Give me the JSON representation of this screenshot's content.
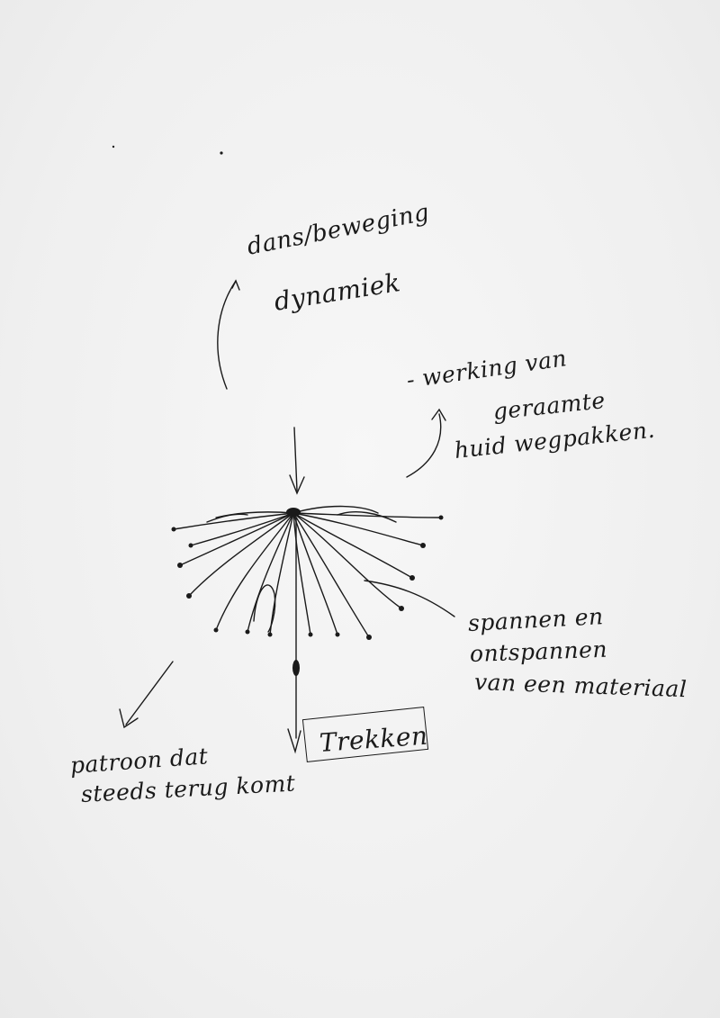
{
  "notes": {
    "dans": "dans/beweging",
    "dynamiek": "dynamiek",
    "werking_1": "- werking van",
    "werking_2": "geraamte",
    "werking_3": "huid wegpakken.",
    "spannen_1": "spannen en",
    "spannen_2": "ontspannen",
    "spannen_3": "van een materiaal",
    "patroon_1": "patroon dat",
    "patroon_2": "steeds terug komt",
    "trekken": "Trekken"
  },
  "colors": {
    "ink": "#1a1a1a",
    "paper": "#f1f1f1"
  }
}
